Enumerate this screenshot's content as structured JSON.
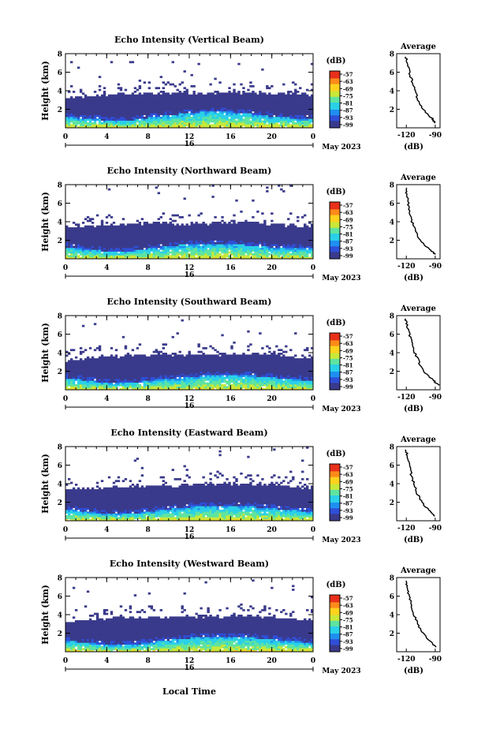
{
  "colorbar": {
    "unit_label": "(dB)",
    "ticks": [
      "-57",
      "-63",
      "-69",
      "-75",
      "-81",
      "-87",
      "-93",
      "-99"
    ],
    "colors": [
      "#3a3a8c",
      "#2f4fd8",
      "#1f8ff0",
      "#2ad0e8",
      "#5fe3a0",
      "#c8e83a",
      "#ffd21f",
      "#ff8a1a",
      "#e8301a"
    ]
  },
  "x_axis": {
    "ticks": [
      "0",
      "4",
      "8",
      "12",
      "16",
      "20",
      "0"
    ],
    "date_day": "16",
    "month_year": "May 2023",
    "label": "Local Time"
  },
  "side_plot": {
    "title": "Average",
    "xlabel": "(dB)",
    "xticks": [
      "-120",
      "-90"
    ]
  },
  "y_axis": {
    "label": "Height (km)",
    "ticks": [
      "2",
      "4",
      "6",
      "8"
    ]
  },
  "chart_data": [
    {
      "type": "heatmap",
      "title": "Echo Intensity (Vertical Beam)",
      "x": [
        0,
        24
      ],
      "y": [
        0,
        8
      ],
      "ylabel": "Height (km)",
      "xlabel": "Local Time",
      "clim": [
        -99,
        -57
      ],
      "echo_top_km": [
        3.2,
        3.4,
        3.6,
        3.7,
        3.7,
        3.8,
        3.8,
        3.8,
        3.8,
        3.7,
        3.7,
        3.6
      ],
      "strong_layer_top_km": [
        1.2,
        1.0,
        0.8,
        0.9,
        1.2,
        1.5,
        1.7,
        1.8,
        1.6,
        1.3,
        1.1,
        1.0
      ],
      "average_profile": {
        "height_km": [
          0.5,
          1,
          2,
          3,
          4,
          5,
          6,
          7,
          7.8
        ],
        "db": [
          -90,
          -93,
          -103,
          -108,
          -111,
          -114,
          -117,
          -119,
          -121
        ]
      }
    },
    {
      "type": "heatmap",
      "title": "Echo Intensity (Northward Beam)",
      "x": [
        0,
        24
      ],
      "y": [
        0,
        8
      ],
      "ylabel": "Height (km)",
      "xlabel": "Local Time",
      "clim": [
        -99,
        -57
      ],
      "echo_top_km": [
        3.3,
        3.5,
        3.6,
        3.8,
        3.9,
        3.8,
        3.8,
        3.9,
        4.0,
        3.8,
        3.6,
        3.5
      ],
      "strong_layer_top_km": [
        1.3,
        1.0,
        0.8,
        0.9,
        1.2,
        1.5,
        1.6,
        1.7,
        1.5,
        1.3,
        1.1,
        1.2
      ],
      "average_profile": {
        "height_km": [
          0.5,
          1,
          2,
          3,
          4,
          5,
          6,
          7,
          7.8
        ],
        "db": [
          -90,
          -96,
          -106,
          -110,
          -114,
          -116,
          -118,
          -120,
          -121
        ]
      }
    },
    {
      "type": "heatmap",
      "title": "Echo Intensity (Southward Beam)",
      "x": [
        0,
        24
      ],
      "y": [
        0,
        8
      ],
      "ylabel": "Height (km)",
      "xlabel": "Local Time",
      "clim": [
        -99,
        -57
      ],
      "echo_top_km": [
        3.2,
        3.5,
        3.6,
        3.7,
        3.8,
        3.8,
        3.8,
        3.8,
        3.9,
        3.8,
        3.6,
        3.4
      ],
      "strong_layer_top_km": [
        1.3,
        1.0,
        0.7,
        0.8,
        1.1,
        1.3,
        1.5,
        1.7,
        1.6,
        1.4,
        1.2,
        1.0
      ],
      "average_profile": {
        "height_km": [
          0.5,
          1,
          2,
          3,
          4,
          5,
          6,
          7,
          7.8
        ],
        "db": [
          -86,
          -92,
          -102,
          -107,
          -111,
          -114,
          -117,
          -119,
          -121
        ]
      }
    },
    {
      "type": "heatmap",
      "title": "Echo Intensity (Eastward Beam)",
      "x": [
        0,
        24
      ],
      "y": [
        0,
        8
      ],
      "ylabel": "Height (km)",
      "xlabel": "Local Time",
      "clim": [
        -99,
        -57
      ],
      "echo_top_km": [
        3.3,
        3.5,
        3.6,
        3.7,
        3.8,
        3.8,
        3.9,
        3.9,
        4.0,
        3.9,
        3.7,
        3.5
      ],
      "strong_layer_top_km": [
        1.2,
        1.0,
        0.7,
        0.8,
        1.1,
        1.4,
        1.6,
        1.7,
        1.6,
        1.4,
        1.2,
        1.0
      ],
      "average_profile": {
        "height_km": [
          0.5,
          1,
          2,
          3,
          4,
          5,
          6,
          7,
          7.8
        ],
        "db": [
          -90,
          -95,
          -104,
          -109,
          -112,
          -115,
          -117,
          -119,
          -121
        ]
      }
    },
    {
      "type": "heatmap",
      "title": "Echo Intensity (Westward Beam)",
      "x": [
        0,
        24
      ],
      "y": [
        0,
        8
      ],
      "ylabel": "Height (km)",
      "xlabel": "Local Time",
      "clim": [
        -99,
        -57
      ],
      "echo_top_km": [
        3.2,
        3.4,
        3.6,
        3.7,
        3.7,
        3.8,
        3.8,
        3.8,
        3.9,
        3.8,
        3.6,
        3.4
      ],
      "strong_layer_top_km": [
        1.2,
        1.0,
        0.7,
        0.8,
        1.1,
        1.4,
        1.6,
        1.7,
        1.6,
        1.4,
        1.2,
        1.0
      ],
      "average_profile": {
        "height_km": [
          0.5,
          1,
          2,
          3,
          4,
          5,
          6,
          7,
          7.8
        ],
        "db": [
          -90,
          -94,
          -103,
          -108,
          -112,
          -115,
          -117,
          -119,
          -121
        ]
      }
    }
  ]
}
